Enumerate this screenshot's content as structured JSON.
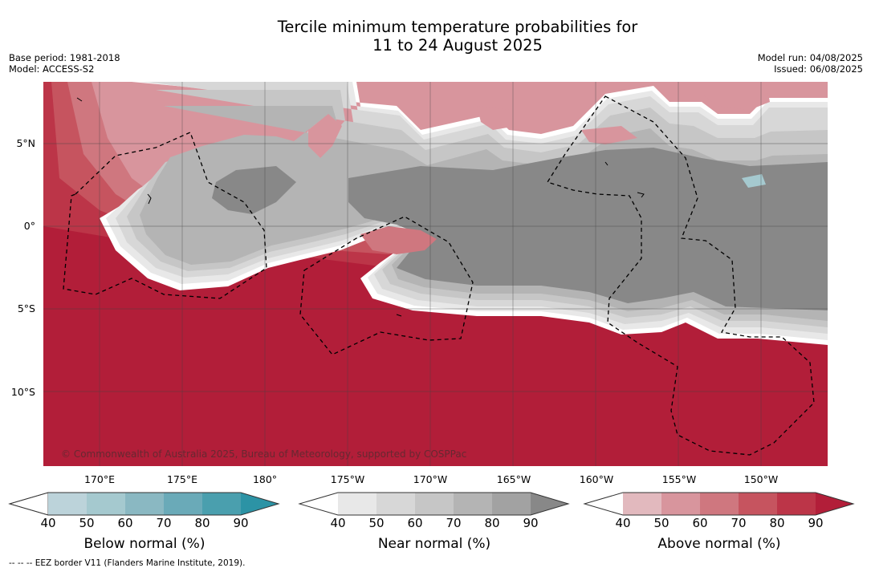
{
  "title": {
    "line1": "Tercile minimum temperature probabilities for",
    "line2": "11 to 24 August 2025"
  },
  "meta": {
    "base_period": "Base period: 1981-2018",
    "model": "Model: ACCESS-S2",
    "model_run": "Model run: 04/08/2025",
    "issued": "Issued: 06/08/2025"
  },
  "map": {
    "copyright": "© Commonwealth of Australia 2025, Bureau of Meteorology, supported by COSPPac",
    "lat_labels": [
      "5°N",
      "0°",
      "5°S",
      "10°S"
    ],
    "lon_labels": [
      "170°E",
      "175°E",
      "180°",
      "175°W",
      "170°W",
      "165°W",
      "160°W",
      "155°W",
      "150°W"
    ]
  },
  "colorbars": [
    {
      "label": "Below normal (%)",
      "ticks": [
        "40",
        "50",
        "60",
        "70",
        "80",
        "90"
      ],
      "colors": [
        "#ffffff",
        "#bcd3da",
        "#a5c9cf",
        "#8ab8c2",
        "#6aaab8",
        "#4a9fae",
        "#2c93a5"
      ]
    },
    {
      "label": "Near normal (%)",
      "ticks": [
        "40",
        "50",
        "60",
        "70",
        "80",
        "90"
      ],
      "colors": [
        "#ffffff",
        "#e8e8e8",
        "#d7d7d7",
        "#c6c6c6",
        "#b4b4b4",
        "#a2a2a2",
        "#888888"
      ]
    },
    {
      "label": "Above normal (%)",
      "ticks": [
        "40",
        "50",
        "60",
        "70",
        "80",
        "90"
      ],
      "colors": [
        "#ffffff",
        "#e2b9be",
        "#d8959d",
        "#cf777f",
        "#c6545f",
        "#bc3548",
        "#b21e39"
      ]
    }
  ],
  "footer": {
    "eez": "--  --  -- EEZ border V11 (Flanders Marine Institute, 2019)."
  }
}
